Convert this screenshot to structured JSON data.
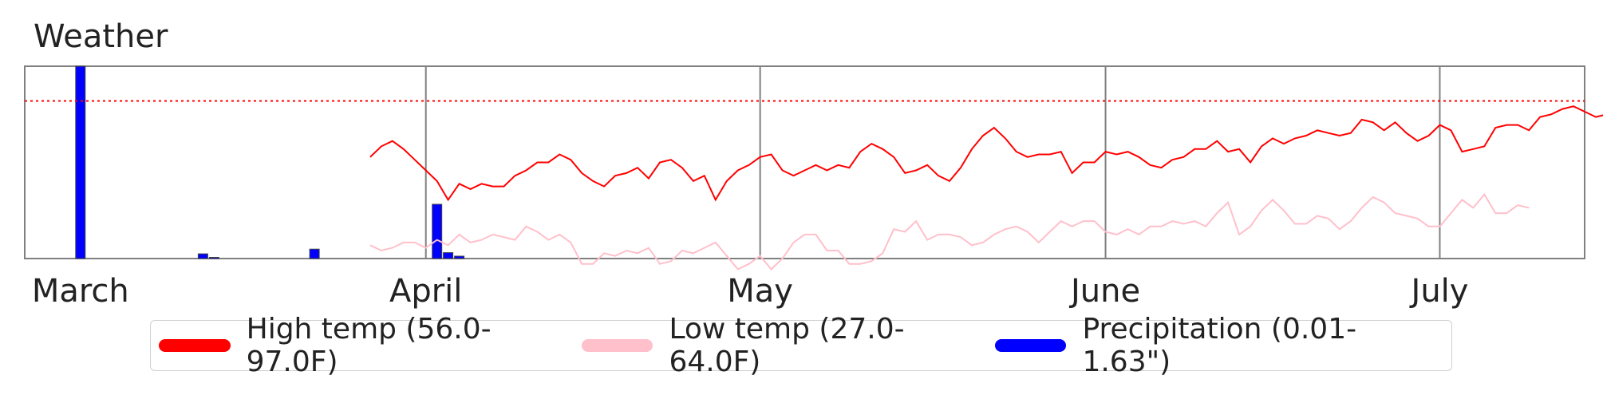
{
  "chart_data": {
    "type": "line",
    "title": "Weather",
    "x_months": [
      "March",
      "April",
      "May",
      "June",
      "July"
    ],
    "month_boundaries": [
      "2000-03-01",
      "2000-04-01",
      "2000-05-01",
      "2000-06-01",
      "2000-07-01"
    ],
    "month_label_dates": [
      "2000-03-01",
      "2000-04-01",
      "2000-05-01",
      "2000-06-01",
      "2000-07-01"
    ],
    "x_start": "2000-02-25",
    "x_end": "2000-07-14",
    "temp_range": [
      38.0,
      110.0
    ],
    "reference_line_temp": 97.0,
    "legend_position": "bottom-center",
    "colors": {
      "high": "#ff0000",
      "low": "#ffc0cb",
      "precip": "#0000ff",
      "grid": "#808080",
      "axes": "#808080",
      "reference": "#ff0000"
    },
    "legend": [
      {
        "key": "high",
        "label": "High temp (56.0-97.0F)"
      },
      {
        "key": "low",
        "label": "Low temp (27.0-64.0F)"
      },
      {
        "key": "precip",
        "label": "Precipitation (0.01-1.63\")"
      }
    ],
    "series": [
      {
        "name": "High temp (56.0-97.0F)",
        "key": "high",
        "start_date": "2000-03-27",
        "x_step_days": 1,
        "values": [
          76,
          80,
          82,
          79,
          75,
          71,
          67,
          60,
          66,
          64,
          66,
          65,
          65,
          69,
          71,
          74,
          74,
          77,
          75,
          70,
          67,
          65,
          69,
          70,
          72,
          68,
          74,
          75,
          72,
          67,
          69,
          60,
          67,
          71,
          73,
          76,
          77,
          71,
          69,
          71,
          73,
          71,
          73,
          72,
          78,
          81,
          79,
          76,
          70,
          71,
          73,
          69,
          67,
          72,
          79,
          84,
          87,
          83,
          78,
          76,
          77,
          77,
          78,
          70,
          74,
          74,
          78,
          77,
          78,
          76,
          73,
          72,
          75,
          76,
          79,
          79,
          82,
          78,
          79,
          74,
          80,
          83,
          81,
          83,
          84,
          86,
          85,
          84,
          85,
          90,
          89,
          86,
          89,
          85,
          82,
          84,
          88,
          86,
          78,
          79,
          80,
          87,
          88,
          88,
          86,
          91,
          92,
          94,
          95,
          93,
          91,
          92,
          92,
          85,
          89,
          87,
          92,
          92,
          91,
          90
        ]
      },
      {
        "name": "Low temp (27.0-64.0F)",
        "key": "low",
        "start_date": "2000-03-27",
        "x_step_days": 1,
        "values": [
          43,
          41,
          42,
          44,
          44,
          42,
          45,
          43,
          47,
          44,
          45,
          47,
          46,
          45,
          50,
          48,
          45,
          47,
          44,
          36,
          36,
          40,
          39,
          41,
          40,
          42,
          36,
          37,
          41,
          40,
          42,
          44,
          39,
          34,
          36,
          39,
          34,
          38,
          44,
          47,
          47,
          41,
          41,
          36,
          36,
          37,
          40,
          49,
          48,
          52,
          45,
          47,
          47,
          46,
          43,
          44,
          47,
          49,
          50,
          48,
          44,
          48,
          52,
          50,
          52,
          52,
          48,
          47,
          49,
          47,
          50,
          50,
          52,
          51,
          52,
          50,
          55,
          59,
          47,
          50,
          56,
          60,
          56,
          51,
          51,
          54,
          53,
          49,
          52,
          57,
          61,
          59,
          55,
          54,
          53,
          50,
          50,
          55,
          60,
          57,
          62,
          55,
          55,
          58,
          57
        ]
      },
      {
        "name": "Precipitation (0.01-1.63\")",
        "key": "precip",
        "bars": [
          {
            "date": "2000-03-01",
            "value": 1.63
          },
          {
            "date": "2000-03-12",
            "value": 0.04
          },
          {
            "date": "2000-03-13",
            "value": 0.01
          },
          {
            "date": "2000-03-22",
            "value": 0.08
          },
          {
            "date": "2000-04-02",
            "value": 0.46
          },
          {
            "date": "2000-04-03",
            "value": 0.05
          },
          {
            "date": "2000-04-04",
            "value": 0.02
          }
        ]
      }
    ]
  }
}
